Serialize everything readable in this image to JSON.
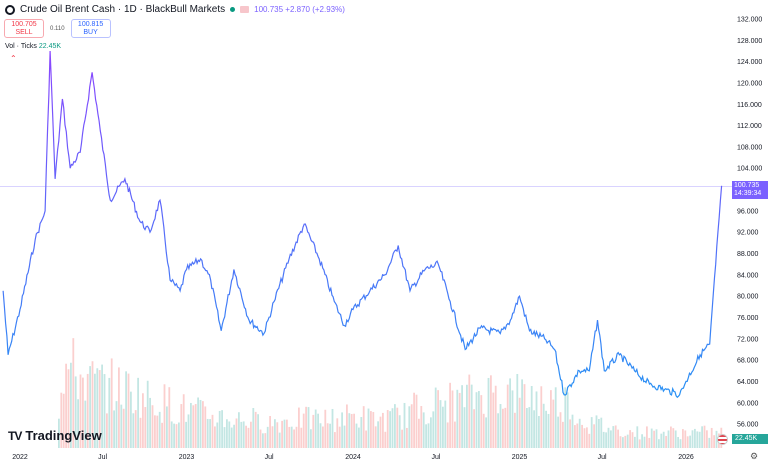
{
  "header": {
    "symbol": "Crude Oil Brent Cash",
    "interval": "1D",
    "broker": "BlackBull Markets",
    "separator": "·",
    "last": "100.735",
    "change": "+2.870",
    "change_pct": "(+2.93%)"
  },
  "trade": {
    "sell_price": "100.705",
    "sell_label": "SELL",
    "spread": "0.110",
    "buy_price": "100.815",
    "buy_label": "BUY"
  },
  "volume_indicator": {
    "label": "Vol · Ticks",
    "value": "22.45K"
  },
  "brand": "TradingView",
  "colors": {
    "line_top": "#8e44ff",
    "line_bottom": "#2196f3",
    "vol_up": "#26a69a",
    "vol_down": "#ef5350",
    "last_price_bg": "#7b61ff"
  },
  "price_label": {
    "value": "100.735",
    "countdown": "14:39:34"
  },
  "volume_label": "22.45K",
  "chart_data": {
    "type": "line",
    "y_ticks": [
      "132.000",
      "128.000",
      "124.000",
      "120.000",
      "116.000",
      "112.000",
      "108.000",
      "104.000",
      "96.000",
      "92.000",
      "88.000",
      "84.000",
      "80.000",
      "76.000",
      "72.000",
      "68.000",
      "64.000",
      "60.000",
      "56.000"
    ],
    "x_ticks": [
      {
        "label": "2022",
        "date": "2022-01-01"
      },
      {
        "label": "Jul",
        "date": "2022-07-01"
      },
      {
        "label": "2023",
        "date": "2023-01-01"
      },
      {
        "label": "Jul",
        "date": "2023-07-01"
      },
      {
        "label": "2024",
        "date": "2024-01-01"
      },
      {
        "label": "Jul",
        "date": "2024-07-01"
      },
      {
        "label": "2025",
        "date": "2025-01-01"
      },
      {
        "label": "Jul",
        "date": "2025-07-01"
      },
      {
        "label": "2026",
        "date": "2026-01-01"
      }
    ],
    "ylim": [
      54,
      134
    ],
    "grid": false,
    "series": [
      {
        "points": [
          [
            "2021-11-25",
            81
          ],
          [
            "2021-12-06",
            69
          ],
          [
            "2022-01-01",
            77.5
          ],
          [
            "2022-02-03",
            90.5
          ],
          [
            "2022-02-25",
            96
          ],
          [
            "2022-03-08",
            126
          ],
          [
            "2022-03-19",
            102
          ],
          [
            "2022-04-04",
            117
          ],
          [
            "2022-04-21",
            104
          ],
          [
            "2022-05-13",
            107
          ],
          [
            "2022-06-08",
            122
          ],
          [
            "2022-06-26",
            111
          ],
          [
            "2022-07-18",
            98
          ],
          [
            "2022-08-19",
            102
          ],
          [
            "2022-09-21",
            94
          ],
          [
            "2022-10-13",
            92
          ],
          [
            "2022-11-04",
            98
          ],
          [
            "2022-11-26",
            83
          ],
          [
            "2022-12-18",
            81
          ],
          [
            "2023-01-01",
            85
          ],
          [
            "2023-02-01",
            87
          ],
          [
            "2023-02-23",
            83
          ],
          [
            "2023-03-18",
            73.5
          ],
          [
            "2023-04-15",
            85
          ],
          [
            "2023-05-18",
            75.5
          ],
          [
            "2023-06-20",
            73
          ],
          [
            "2023-07-12",
            79
          ],
          [
            "2023-08-14",
            87
          ],
          [
            "2023-09-16",
            93.5
          ],
          [
            "2023-10-19",
            87
          ],
          [
            "2023-11-21",
            79
          ],
          [
            "2023-12-13",
            74.5
          ],
          [
            "2024-01-01",
            77.5
          ],
          [
            "2024-02-07",
            81
          ],
          [
            "2024-03-11",
            84
          ],
          [
            "2024-04-09",
            89.5
          ],
          [
            "2024-05-05",
            81
          ],
          [
            "2024-06-07",
            85
          ],
          [
            "2024-07-06",
            86
          ],
          [
            "2024-08-01",
            79
          ],
          [
            "2024-09-03",
            70
          ],
          [
            "2024-10-06",
            74
          ],
          [
            "2024-11-19",
            73
          ],
          [
            "2024-12-11",
            75.5
          ],
          [
            "2025-01-01",
            80
          ],
          [
            "2025-01-23",
            73.5
          ],
          [
            "2025-02-25",
            72
          ],
          [
            "2025-03-19",
            70
          ],
          [
            "2025-04-09",
            61.5
          ],
          [
            "2025-05-12",
            66
          ],
          [
            "2025-06-03",
            66
          ],
          [
            "2025-06-21",
            75.5
          ],
          [
            "2025-07-06",
            66
          ],
          [
            "2025-08-08",
            69
          ],
          [
            "2025-09-10",
            66
          ],
          [
            "2025-10-13",
            63.5
          ],
          [
            "2025-11-15",
            62.5
          ],
          [
            "2025-12-18",
            61.5
          ],
          [
            "2026-01-01",
            64
          ],
          [
            "2026-02-01",
            69
          ],
          [
            "2026-02-22",
            71
          ],
          [
            "2026-03-07",
            86
          ],
          [
            "2026-03-20",
            100.7
          ]
        ]
      }
    ],
    "volume": {
      "monthly_level": [
        20,
        22,
        30,
        35,
        60,
        55,
        50,
        48,
        45,
        42,
        38,
        35,
        30,
        28,
        26,
        24,
        22,
        22,
        20,
        20,
        21,
        22,
        22,
        22,
        24,
        24,
        22,
        22,
        25,
        30,
        32,
        34,
        36,
        40,
        42,
        44,
        42,
        40,
        38,
        36,
        36,
        22,
        18,
        16,
        14,
        12,
        12,
        12,
        12,
        12,
        12,
        12,
        14,
        14,
        15,
        18,
        22,
        45
      ]
    }
  }
}
